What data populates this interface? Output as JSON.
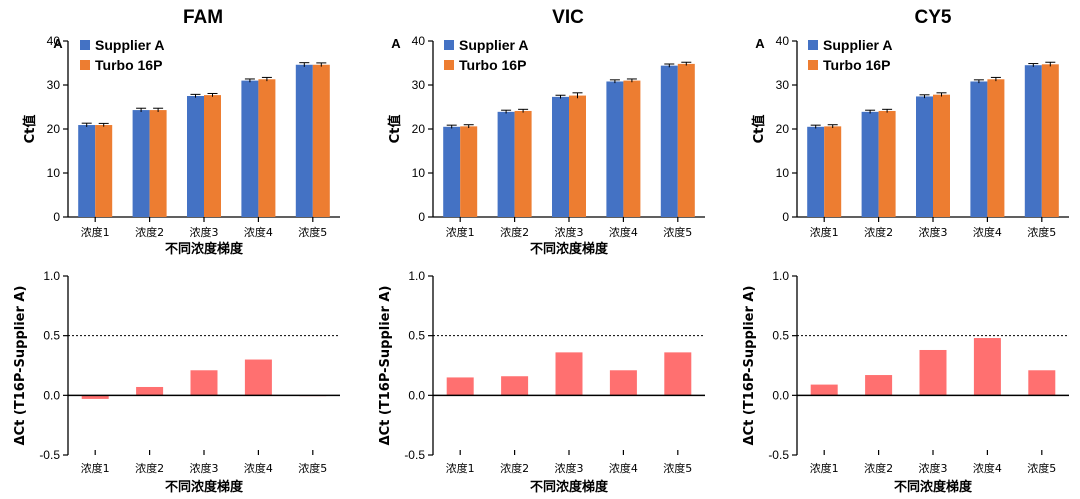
{
  "colors": {
    "supplier": "#4472c4",
    "turbo": "#ed7d31",
    "delta": "#ff7070",
    "axis": "#000000"
  },
  "chart_data": [
    {
      "type": "bar",
      "title": "FAM",
      "panel_letter": "A",
      "categories": [
        "浓度1",
        "浓度2",
        "浓度3",
        "浓度4",
        "浓度5"
      ],
      "xlabel": "不同浓度梯度",
      "ylabel": "Ct值",
      "ylim": [
        0,
        40
      ],
      "yticks": [
        0,
        10,
        20,
        30,
        40
      ],
      "legend_position": "top-left",
      "series": [
        {
          "name": "Supplier A",
          "values": [
            20.9,
            24.3,
            27.5,
            31.0,
            34.6
          ],
          "errors": [
            0.15,
            0.15,
            0.1,
            0.1,
            0.2
          ]
        },
        {
          "name": "Turbo 16P",
          "values": [
            20.9,
            24.3,
            27.7,
            31.3,
            34.6
          ],
          "errors": [
            0.1,
            0.15,
            0.1,
            0.15,
            0.15
          ]
        }
      ]
    },
    {
      "type": "bar",
      "title": "VIC",
      "panel_letter": "A",
      "categories": [
        "浓度1",
        "浓度2",
        "浓度3",
        "浓度4",
        "浓度5"
      ],
      "xlabel": "不同浓度梯度",
      "ylabel": "Ct值",
      "ylim": [
        0,
        40
      ],
      "yticks": [
        0,
        10,
        20,
        30,
        40
      ],
      "legend_position": "top-left",
      "series": [
        {
          "name": "Supplier A",
          "values": [
            20.5,
            23.9,
            27.3,
            30.8,
            34.4
          ],
          "errors": [
            0.1,
            0.1,
            0.1,
            0.1,
            0.1
          ]
        },
        {
          "name": "Turbo 16P",
          "values": [
            20.6,
            24.1,
            27.6,
            31.0,
            34.8
          ],
          "errors": [
            0.1,
            0.1,
            0.35,
            0.1,
            0.1
          ]
        }
      ]
    },
    {
      "type": "bar",
      "title": "CY5",
      "panel_letter": "A",
      "categories": [
        "浓度1",
        "浓度2",
        "浓度3",
        "浓度4",
        "浓度5"
      ],
      "xlabel": "",
      "ylabel": "Ct值",
      "ylim": [
        0,
        40
      ],
      "yticks": [
        0,
        10,
        20,
        30,
        40
      ],
      "legend_position": "top-left",
      "series": [
        {
          "name": "Supplier A",
          "values": [
            20.5,
            23.9,
            27.4,
            30.8,
            34.5
          ],
          "errors": [
            0.1,
            0.1,
            0.1,
            0.1,
            0.1
          ]
        },
        {
          "name": "Turbo 16P",
          "values": [
            20.6,
            24.1,
            27.8,
            31.3,
            34.7
          ],
          "errors": [
            0.1,
            0.1,
            0.15,
            0.15,
            0.2
          ]
        }
      ]
    },
    {
      "type": "bar",
      "categories": [
        "浓度1",
        "浓度2",
        "浓度3",
        "浓度4",
        "浓度5"
      ],
      "xlabel": "不同浓度梯度",
      "ylabel": "ΔCt (T16P-Supplier A)",
      "ylim": [
        -0.5,
        1.0
      ],
      "yticks": [
        -0.5,
        0.0,
        0.5,
        1.0
      ],
      "ytick_labels": [
        "-0.5",
        "0.0",
        "0.5",
        "1.0"
      ],
      "reference_line": 0.5,
      "values": [
        -0.03,
        0.07,
        0.21,
        0.3,
        0.0
      ]
    },
    {
      "type": "bar",
      "categories": [
        "浓度1",
        "浓度2",
        "浓度3",
        "浓度4",
        "浓度5"
      ],
      "xlabel": "不同浓度梯度",
      "ylabel": "ΔCt (T16P-Supplier A)",
      "ylim": [
        -0.5,
        1.0
      ],
      "yticks": [
        -0.5,
        0.0,
        0.5,
        1.0
      ],
      "ytick_labels": [
        "-0.5",
        "0.0",
        "0.5",
        "1.0"
      ],
      "reference_line": 0.5,
      "values": [
        0.15,
        0.16,
        0.36,
        0.21,
        0.36
      ]
    },
    {
      "type": "bar",
      "categories": [
        "浓度1",
        "浓度2",
        "浓度3",
        "浓度4",
        "浓度5"
      ],
      "xlabel": "不同浓度梯度",
      "ylabel": "ΔCt (T16P-Supplier A)",
      "ylim": [
        -0.5,
        1.0
      ],
      "yticks": [
        -0.5,
        0.0,
        0.5,
        1.0
      ],
      "ytick_labels": [
        "-0.5",
        "0.0",
        "0.5",
        "1.0"
      ],
      "reference_line": 0.5,
      "values": [
        0.09,
        0.17,
        0.38,
        0.48,
        0.21
      ]
    }
  ]
}
